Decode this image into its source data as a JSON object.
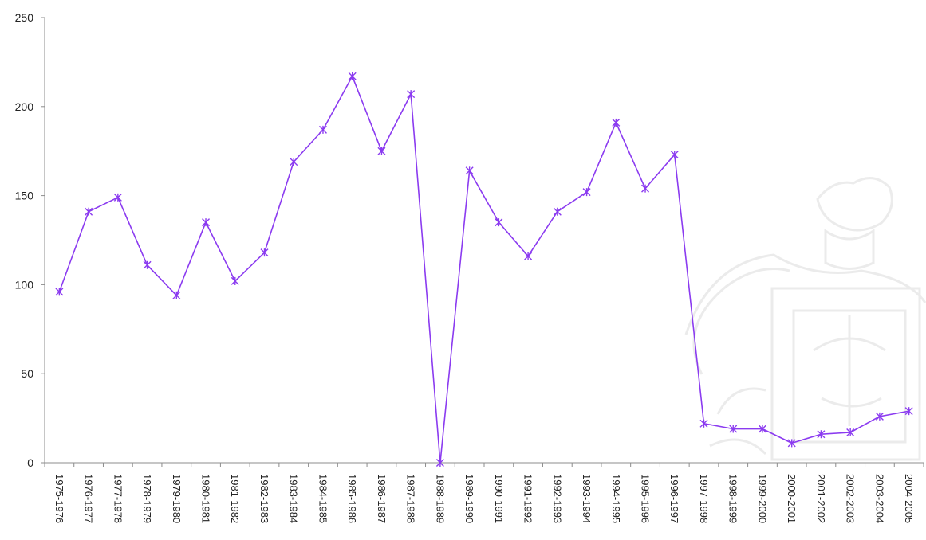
{
  "chart_data": {
    "type": "line",
    "title": "",
    "xlabel": "",
    "ylabel": "",
    "ylim": [
      0,
      250
    ],
    "yticks": [
      0,
      50,
      100,
      150,
      200,
      250
    ],
    "grid": false,
    "legend": "none",
    "categories": [
      "1975-1976",
      "1976-1977",
      "1977-1978",
      "1978-1979",
      "1979-1980",
      "1980-1981",
      "1981-1982",
      "1982-1983",
      "1983-1984",
      "1984-1985",
      "1985-1986",
      "1986-1987",
      "1987-1988",
      "1988-1989",
      "1989-1990",
      "1990-1991",
      "1991-1992",
      "1992-1993",
      "1993-1994",
      "1994-1995",
      "1995-1996",
      "1996-1997",
      "1997-1998",
      "1998-1999",
      "1999-2000",
      "2000-2001",
      "2001-2002",
      "2002-2003",
      "2003-2004",
      "2004-2005"
    ],
    "series": [
      {
        "color": "#8b3bf0",
        "marker": "asterisk",
        "values": [
          96,
          141,
          149,
          111,
          94,
          135,
          102,
          118,
          169,
          187,
          217,
          175,
          207,
          0,
          164,
          135,
          116,
          141,
          152,
          191,
          154,
          173,
          22,
          19,
          19,
          11,
          16,
          17,
          26,
          29
        ]
      }
    ]
  }
}
